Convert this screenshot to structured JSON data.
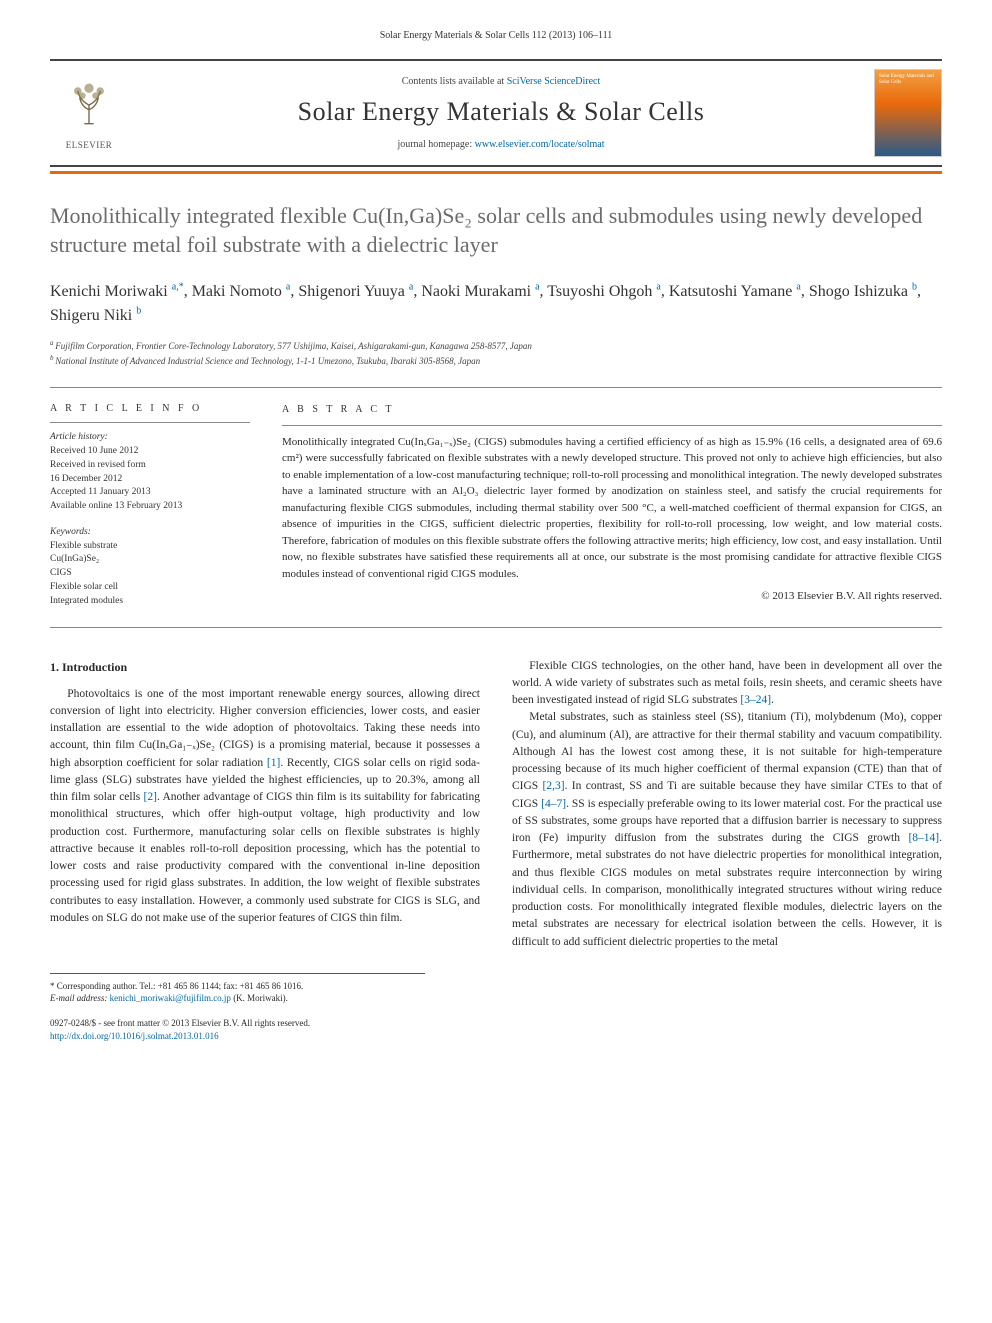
{
  "journal_ref": "Solar Energy Materials & Solar Cells 112 (2013) 106–111",
  "header": {
    "contents_prefix": "Contents lists available at ",
    "contents_link": "SciVerse ScienceDirect",
    "journal_title": "Solar Energy Materials & Solar Cells",
    "homepage_prefix": "journal homepage: ",
    "homepage_link": "www.elsevier.com/locate/solmat",
    "publisher": "ELSEVIER",
    "cover_text": "Solar Energy Materials and Solar Cells"
  },
  "title": "Monolithically integrated flexible Cu(In,Ga)Se₂ solar cells and submodules using newly developed structure metal foil substrate with a dielectric layer",
  "authors_html": "Kenichi Moriwaki",
  "authors": [
    {
      "name": "Kenichi Moriwaki",
      "affil": "a,",
      "corr": "*"
    },
    {
      "name": "Maki Nomoto",
      "affil": "a"
    },
    {
      "name": "Shigenori Yuuya",
      "affil": "a"
    },
    {
      "name": "Naoki Murakami",
      "affil": "a"
    },
    {
      "name": "Tsuyoshi Ohgoh",
      "affil": "a"
    },
    {
      "name": "Katsutoshi Yamane",
      "affil": "a"
    },
    {
      "name": "Shogo Ishizuka",
      "affil": "b"
    },
    {
      "name": "Shigeru Niki",
      "affil": "b"
    }
  ],
  "affiliations": [
    {
      "sup": "a",
      "text": "Fujifilm Corporation, Frontier Core-Technology Laboratory, 577 Ushijima, Kaisei, Ashigarakami-gun, Kanagawa 258-8577, Japan"
    },
    {
      "sup": "b",
      "text": "National Institute of Advanced Industrial Science and Technology, 1-1-1 Umezono, Tsukuba, Ibaraki 305-8568, Japan"
    }
  ],
  "article_info": {
    "heading": "A R T I C L E  I N F O",
    "history_label": "Article history:",
    "history": [
      "Received 10 June 2012",
      "Received in revised form",
      "16 December 2012",
      "Accepted 11 January 2013",
      "Available online 13 February 2013"
    ],
    "keywords_label": "Keywords:",
    "keywords": [
      "Flexible substrate",
      "Cu(InGa)Se₂",
      "CIGS",
      "Flexible solar cell",
      "Integrated modules"
    ]
  },
  "abstract": {
    "heading": "A B S T R A C T",
    "text": "Monolithically integrated Cu(InₓGa₁₋ₓ)Se₂ (CIGS) submodules having a certified efficiency of as high as 15.9% (16 cells, a designated area of 69.6 cm²) were successfully fabricated on flexible substrates with a newly developed structure. This proved not only to achieve high efficiencies, but also to enable implementation of a low-cost manufacturing technique; roll-to-roll processing and monolithical integration. The newly developed substrates have a laminated structure with an Al₂O₃ dielectric layer formed by anodization on stainless steel, and satisfy the crucial requirements for manufacturing flexible CIGS submodules, including thermal stability over 500 °C, a well-matched coefficient of thermal expansion for CIGS, an absence of impurities in the CIGS, sufficient dielectric properties, flexibility for roll-to-roll processing, low weight, and low material costs. Therefore, fabrication of modules on this flexible substrate offers the following attractive merits; high efficiency, low cost, and easy installation. Until now, no flexible substrates have satisfied these requirements all at once, our substrate is the most promising candidate for attractive flexible CIGS modules instead of conventional rigid CIGS modules.",
    "copyright": "© 2013 Elsevier B.V. All rights reserved."
  },
  "intro": {
    "heading": "1. Introduction",
    "p1a": "Photovoltaics is one of the most important renewable energy sources, allowing direct conversion of light into electricity. Higher conversion efficiencies, lower costs, and easier installation are essential to the wide adoption of photovoltaics. Taking these needs into account, thin film Cu(InₓGa₁₋ₓ)Se₂ (CIGS) is a promising material, because it possesses a high absorption coefficient for solar radiation ",
    "ref1": "[1]",
    "p1b": ". Recently, CIGS solar cells on rigid soda-lime glass (SLG) substrates have yielded the highest efficiencies, up to 20.3%, among all thin film solar cells ",
    "ref2": "[2]",
    "p1c": ". Another advantage of CIGS thin film is its suitability for fabricating monolithical structures, which offer high-output voltage, high productivity and low production cost. Furthermore, manufacturing solar cells on flexible substrates is highly attractive because it enables roll-to-roll deposition processing, which has the potential to lower costs and raise productivity compared with the conventional in-line deposition processing used for rigid glass substrates. In addition, the low weight of flexible substrates contributes to easy installation. However, a commonly used substrate for CIGS is SLG, and modules on SLG do not make use of the superior features of CIGS thin film.",
    "p2a": "Flexible CIGS technologies, on the other hand, have been in development all over the world. A wide variety of substrates such as metal foils, resin sheets, and ceramic sheets have been investigated instead of rigid SLG substrates ",
    "ref3": "[3–24]",
    "p2b": ".",
    "p3a": "Metal substrates, such as stainless steel (SS), titanium (Ti), molybdenum (Mo), copper (Cu), and aluminum (Al), are attractive for their thermal stability and vacuum compatibility. Although Al has the lowest cost among these, it is not suitable for high-temperature processing because of its much higher coefficient of thermal expansion (CTE) than that of CIGS ",
    "ref4": "[2,3]",
    "p3b": ". In contrast, SS and Ti are suitable because they have similar CTEs to that of CIGS ",
    "ref5": "[4–7]",
    "p3c": ". SS is especially preferable owing to its lower material cost. For the practical use of SS substrates, some groups have reported that a diffusion barrier is necessary to suppress iron (Fe) impurity diffusion from the substrates during the CIGS growth ",
    "ref6": "[8–14]",
    "p3d": ". Furthermore, metal substrates do not have dielectric properties for monolithical integration, and thus flexible CIGS modules on metal substrates require interconnection by wiring individual cells. In comparison, monolithically integrated structures without wiring reduce production costs. For monolithically integrated flexible modules, dielectric layers on the metal substrates are necessary for electrical isolation between the cells. However, it is difficult to add sufficient dielectric properties to the metal"
  },
  "footnote": {
    "corr_label": "* Corresponding author. Tel.: +81 465 86 1144; fax: +81 465 86 1016.",
    "email_label": "E-mail address: ",
    "email": "kenichi_moriwaki@fujifilm.co.jp",
    "email_suffix": " (K. Moriwaki)."
  },
  "bottom": {
    "issn": "0927-0248/$ - see front matter © 2013 Elsevier B.V. All rights reserved.",
    "doi": "http://dx.doi.org/10.1016/j.solmat.2013.01.016"
  },
  "colors": {
    "orange": "#e8690b",
    "link": "#0066aa",
    "title_grey": "#6b6b6b"
  }
}
